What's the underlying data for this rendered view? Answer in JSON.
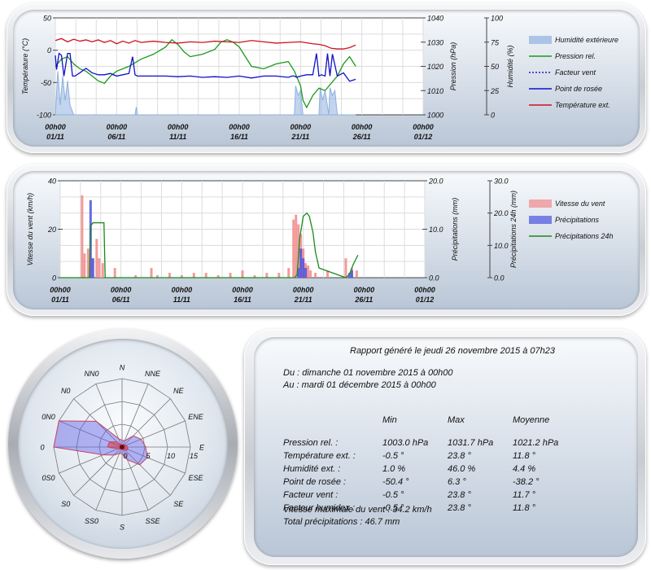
{
  "chart_data": [
    {
      "type": "line",
      "title": "",
      "x_ticks": [
        "00h00\n01/11",
        "00h00\n06/11",
        "00h00\n11/11",
        "00h00\n16/11",
        "00h00\n21/11",
        "00h00\n26/11",
        "00h00\n01/12"
      ],
      "x_range_days": [
        1,
        31
      ],
      "axes": {
        "left": {
          "label": "Température (°C)",
          "range": [
            -100,
            50
          ],
          "ticks": [
            "50",
            "0",
            "-50",
            "-100"
          ]
        },
        "right1": {
          "label": "Pression (hPa)",
          "range": [
            1000,
            1040
          ],
          "ticks": [
            "1040",
            "1030",
            "1020",
            "1010",
            "1000"
          ]
        },
        "right2": {
          "label": "Humidité (%)",
          "range": [
            0,
            100
          ],
          "ticks": [
            "100",
            "75",
            "50",
            "25",
            "0"
          ]
        }
      },
      "grid": true,
      "legend_position": "right",
      "series": [
        {
          "name": "Humidité extérieure",
          "axis": "right2",
          "style": "area",
          "color": "#8fb0e0",
          "x": [
            1,
            1.2,
            1.4,
            1.6,
            1.8,
            2.0,
            2.2,
            2.5,
            2.8,
            4,
            7.5,
            7.6,
            7.7,
            11,
            15,
            20.5,
            20.6,
            20.8,
            21.0,
            21.2,
            22.5,
            22.6,
            22.8,
            23.0,
            23.3,
            23.4,
            23.6,
            23.8,
            24.0,
            25.5
          ],
          "y": [
            0,
            45,
            10,
            40,
            15,
            35,
            10,
            0,
            0,
            0,
            0,
            8,
            0,
            0,
            0,
            0,
            30,
            20,
            25,
            0,
            0,
            28,
            15,
            25,
            0,
            28,
            20,
            25,
            0,
            0
          ]
        },
        {
          "name": "Pression rel.",
          "axis": "right1",
          "style": "line",
          "color": "#1a9a1a",
          "x": [
            1,
            1.5,
            2,
            2.5,
            3,
            3.5,
            4,
            4.5,
            5,
            5.5,
            6,
            7,
            8,
            9,
            10,
            10.5,
            11,
            11.5,
            12,
            13,
            14,
            14.5,
            15,
            15.5,
            16,
            16.5,
            17,
            18,
            19,
            20,
            20.5,
            21,
            21.2,
            21.5,
            22,
            22.5,
            23,
            23.5,
            24,
            24.5,
            25,
            25.5
          ],
          "y": [
            1020,
            1023,
            1024,
            1021,
            1019,
            1018,
            1016,
            1014,
            1013,
            1016,
            1018,
            1020,
            1023,
            1025,
            1028,
            1031,
            1029,
            1026,
            1024,
            1025,
            1027,
            1030,
            1031,
            1030,
            1028,
            1024,
            1020,
            1019,
            1021,
            1022,
            1018,
            1012,
            1006,
            1003,
            1008,
            1011,
            1010,
            1013,
            1016,
            1021,
            1024,
            1020
          ]
        },
        {
          "name": "Facteur vent",
          "axis": "left",
          "style": "dotted",
          "color": "#2020c0",
          "x": [
            1,
            25.5
          ],
          "y": [
            null,
            null
          ]
        },
        {
          "name": "Point de rosée",
          "axis": "left",
          "style": "line",
          "color": "#1010c8",
          "x": [
            1,
            1.1,
            1.3,
            1.5,
            1.7,
            2.0,
            2.2,
            2.4,
            2.6,
            3.0,
            3.5,
            4,
            4.5,
            5,
            5.5,
            6,
            6.5,
            7,
            7.3,
            7.5,
            7.7,
            8,
            9,
            10,
            11,
            12,
            13,
            14,
            15,
            16,
            17,
            18,
            19,
            20,
            20.3,
            20.5,
            20.7,
            21.0,
            21.5,
            22,
            22.3,
            22.5,
            22.7,
            23,
            23.2,
            23.4,
            23.6,
            24,
            24.5,
            25,
            25.5
          ],
          "y": [
            -8,
            -30,
            -5,
            -8,
            -40,
            -5,
            -5,
            -40,
            -40,
            -35,
            -28,
            -35,
            -38,
            -38,
            -36,
            -40,
            -38,
            -36,
            -10,
            -38,
            -40,
            -40,
            -40,
            -40,
            -41,
            -40,
            -42,
            -41,
            -42,
            -40,
            -43,
            -40,
            -40,
            -42,
            -40,
            -40,
            -42,
            -40,
            -38,
            -38,
            -5,
            -40,
            -38,
            -40,
            -5,
            -40,
            -6,
            -40,
            -35,
            -48,
            -45
          ]
        },
        {
          "name": "Température ext.",
          "axis": "left",
          "style": "line",
          "color": "#d01020",
          "x": [
            1,
            1.5,
            2,
            2.5,
            3,
            3.5,
            4,
            4.5,
            5,
            5.5,
            6,
            6.5,
            7,
            7.5,
            8,
            9,
            10,
            11,
            12,
            13,
            14,
            15,
            16,
            17,
            18,
            19,
            20,
            21,
            22,
            22.5,
            23,
            23.5,
            24,
            24.5,
            25,
            25.5
          ],
          "y": [
            15,
            18,
            13,
            17,
            14,
            16,
            13,
            16,
            12,
            15,
            10,
            14,
            11,
            15,
            12,
            14,
            12,
            11,
            13,
            12,
            14,
            13,
            12,
            15,
            13,
            11,
            12,
            13,
            10,
            9,
            7,
            3,
            2,
            2,
            4,
            8
          ]
        }
      ]
    },
    {
      "type": "bar",
      "title": "",
      "x_ticks": [
        "00h00\n01/11",
        "00h00\n06/11",
        "00h00\n11/11",
        "00h00\n16/11",
        "00h00\n21/11",
        "00h00\n26/11",
        "00h00\n01/12"
      ],
      "x_range_days": [
        1,
        31
      ],
      "axes": {
        "left": {
          "label": "Vitesse du vent (km/h)",
          "range": [
            0,
            40
          ],
          "ticks": [
            "40",
            "20",
            "0"
          ]
        },
        "right1": {
          "label": "Précipitations (mm)",
          "range": [
            0,
            20
          ],
          "ticks": [
            "20.0",
            "10.0",
            "0.0"
          ]
        },
        "right2": {
          "label": "Précipitations 24h (mm)",
          "range": [
            0,
            30
          ],
          "ticks": [
            "30.0",
            "20.0",
            "10.0",
            "0.0"
          ]
        }
      },
      "grid": true,
      "legend_position": "right",
      "series": [
        {
          "name": "Vitesse du vent",
          "axis": "left",
          "style": "bars",
          "color": "#f08a8a",
          "x": [
            2.8,
            3.0,
            3.3,
            3.6,
            4.0,
            4.2,
            4.5,
            5.5,
            7.2,
            8.5,
            9,
            10,
            11,
            12,
            13,
            14,
            15,
            16,
            17,
            18,
            19,
            19.8,
            20.2,
            20.4,
            20.6,
            20.8,
            21.0,
            21.2,
            21.4,
            21.6,
            22,
            23,
            24.5,
            25.0,
            25.4
          ],
          "y": [
            34,
            10,
            12,
            8,
            16,
            8,
            6,
            4,
            1,
            4,
            1,
            2,
            1,
            2,
            2,
            1,
            2,
            3,
            1,
            2,
            2,
            4,
            24,
            26,
            22,
            18,
            12,
            6,
            5,
            3,
            2,
            3,
            8,
            4,
            3
          ]
        },
        {
          "name": "Précipitations",
          "axis": "right1",
          "style": "bars",
          "color": "#4a52e0",
          "x": [
            3.5,
            3.7,
            20.6,
            20.8,
            21.0,
            21.2,
            24.8,
            25.0
          ],
          "y": [
            16,
            4,
            2,
            6,
            4,
            2,
            1,
            1.5
          ]
        },
        {
          "name": "Précipitations 24h",
          "axis": "right2",
          "style": "line",
          "color": "#1a8a1a",
          "x": [
            1,
            3.4,
            3.5,
            3.7,
            4.0,
            4.6,
            4.7,
            5.0,
            12,
            20.3,
            20.5,
            20.7,
            21.0,
            21.3,
            21.5,
            21.8,
            22.0,
            22.3,
            24.5,
            24.8,
            25.1,
            25.5
          ],
          "y": [
            0,
            0,
            16,
            17,
            17,
            17,
            0,
            0,
            0,
            0,
            1,
            12,
            19,
            20,
            19,
            14,
            8,
            3,
            0,
            1,
            4,
            7
          ]
        }
      ]
    },
    {
      "type": "radar",
      "title": "",
      "directions": [
        "N",
        "NNE",
        "NE",
        "ENE",
        "E",
        "ESE",
        "SE",
        "SSE",
        "S",
        "SS0",
        "S0",
        "0S0",
        "0",
        "0N0",
        "N0",
        "NN0"
      ],
      "radial_ticks": [
        "0",
        "5",
        "10",
        "15"
      ],
      "radial_max": 15,
      "series": [
        {
          "name": "max",
          "color": "#6060e8",
          "values": [
            1.5,
            1.5,
            3.5,
            4.5,
            5.2,
            6.0,
            5.5,
            3.0,
            1.5,
            1.5,
            2.5,
            4.5,
            15.0,
            15.0,
            8.0,
            2.0
          ]
        },
        {
          "name": "avg",
          "color": "#e02020",
          "values": [
            0.3,
            0.4,
            0.8,
            1.0,
            1.2,
            1.4,
            1.1,
            0.6,
            0.3,
            0.3,
            0.5,
            1.0,
            3.2,
            3.0,
            1.6,
            0.4
          ]
        }
      ]
    }
  ],
  "legend1": [
    "Humidité extérieure",
    "Pression rel.",
    "Facteur vent",
    "Point de rosée",
    "Température ext."
  ],
  "legend2": [
    "Vitesse du vent",
    "Précipitations",
    "Précipitations 24h"
  ],
  "report": {
    "title": "Rapport généré le jeudi 26 novembre 2015 à 07h23",
    "from": "Du : dimanche 01 novembre 2015 à 00h00",
    "to": "Au : mardi 01 décembre 2015 à 00h00",
    "headers": [
      "Min",
      "Max",
      "Moyenne"
    ],
    "rows": [
      {
        "label": "Pression rel. :",
        "min": "1003.0 hPa",
        "max": "1031.7 hPa",
        "avg": "1021.2 hPa"
      },
      {
        "label": "Température ext. :",
        "min": "-0.5 °",
        "max": "23.8 °",
        "avg": "11.8 °"
      },
      {
        "label": "Humidité ext. :",
        "min": "1.0 %",
        "max": "46.0 %",
        "avg": "4.4 %"
      },
      {
        "label": "Point de rosée :",
        "min": "-50.4 °",
        "max": "6.3 °",
        "avg": "-38.2 °"
      },
      {
        "label": "Facteur vent :",
        "min": "-0.5 °",
        "max": "23.8 °",
        "avg": "11.7 °"
      },
      {
        "label": "Facteur humidex :",
        "min": "-0.5 °",
        "max": "23.8 °",
        "avg": "11.8 °"
      }
    ],
    "max_wind": "Vitesse maximale du vent : 34.2 km/h",
    "total_rain": "Total précipitations : 46.7 mm"
  }
}
